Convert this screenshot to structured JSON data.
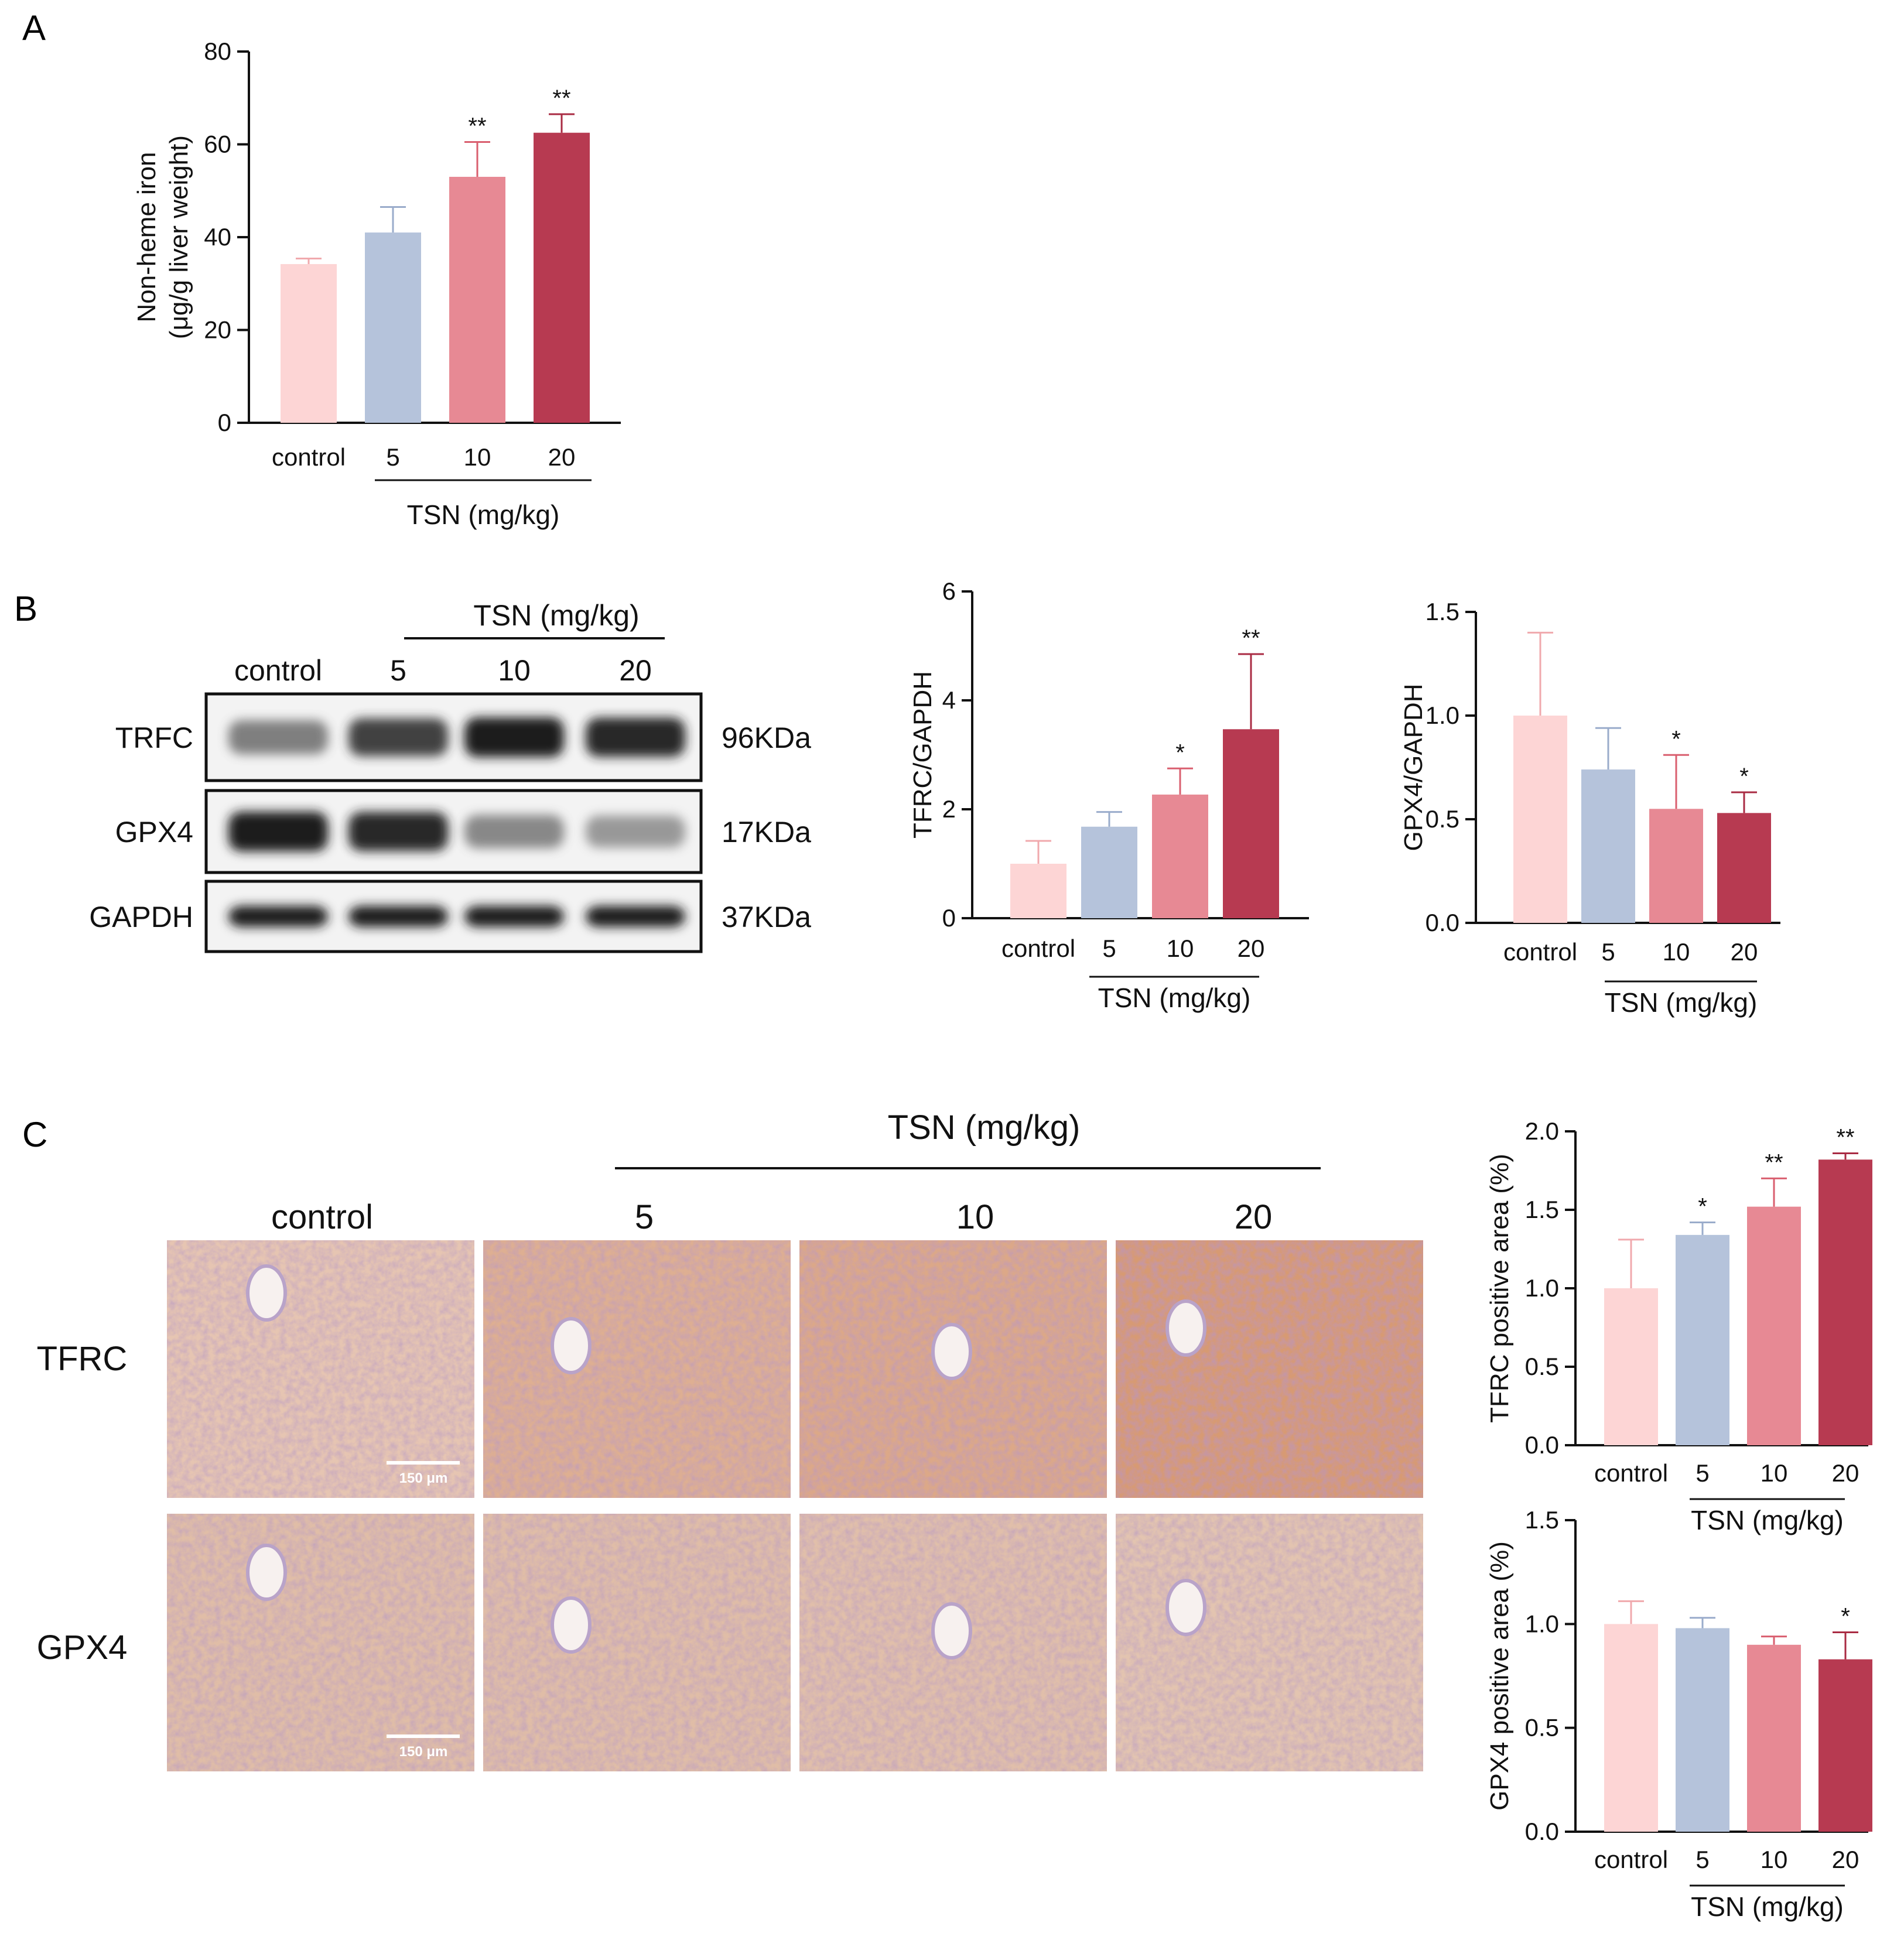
{
  "colors": {
    "control": "#fdd5d5",
    "tsn5": "#b5c3db",
    "tsn10": "#e78994",
    "tsn20": "#b73a51",
    "err_control": "#f0a9ad",
    "err_tsn5": "#9aaccb",
    "err_tsn10": "#d95f6f",
    "err_tsn20": "#a92b43",
    "ihc_tfrc": "#d9a384",
    "ihc_gpx4": "#d9b49f"
  },
  "panels": {
    "a": "A",
    "b": "B",
    "c": "C"
  },
  "blot": {
    "group_label": "TSN  (mg/kg)",
    "lanes": [
      "control",
      "5",
      "10",
      "20"
    ],
    "rows": [
      {
        "protein": "TRFC",
        "size": "96KDa",
        "intensity": [
          0.55,
          0.85,
          1.0,
          0.95
        ]
      },
      {
        "protein": "GPX4",
        "size": "17KDa",
        "intensity": [
          1.0,
          0.95,
          0.5,
          0.4
        ]
      },
      {
        "protein": "GAPDH",
        "size": "37KDa",
        "intensity": [
          1.0,
          1.0,
          1.0,
          1.0
        ]
      }
    ]
  },
  "ihc": {
    "group_label": "TSN (mg/kg)",
    "columns": [
      "control",
      "5",
      "10",
      "20"
    ],
    "rows": [
      "TFRC",
      "GPX4"
    ],
    "scale_bar": "150 μm",
    "tfrc_staining": [
      0.35,
      0.65,
      0.75,
      0.95
    ],
    "gpx4_staining": [
      0.55,
      0.55,
      0.5,
      0.4
    ]
  },
  "chart_data": [
    {
      "id": "A",
      "type": "bar",
      "categories": [
        "control",
        "5",
        "10",
        "20"
      ],
      "values": [
        34.2,
        41.0,
        53.0,
        62.5
      ],
      "errors": [
        1.2,
        5.5,
        7.5,
        4.0
      ],
      "significance": [
        "",
        "",
        "**",
        "**"
      ],
      "ylabel_lines": [
        "Non-heme iron",
        "(μg/g liver weight)"
      ],
      "xgroup_label": "TSN (mg/kg)",
      "ylim": [
        0,
        80
      ],
      "yticks": [
        "0",
        "20",
        "40",
        "60",
        "80"
      ]
    },
    {
      "id": "B-TFRC",
      "type": "bar",
      "categories": [
        "control",
        "5",
        "10",
        "20"
      ],
      "values": [
        1.0,
        1.68,
        2.27,
        3.47
      ],
      "errors": [
        0.42,
        0.27,
        0.48,
        1.38
      ],
      "significance": [
        "",
        "",
        "*",
        "**"
      ],
      "ylabel_lines": [
        "TFRC/GAPDH"
      ],
      "xgroup_label": "TSN (mg/kg)",
      "ylim": [
        0,
        6
      ],
      "yticks": [
        "0",
        "2",
        "4",
        "6"
      ]
    },
    {
      "id": "B-GPX4",
      "type": "bar",
      "categories": [
        "control",
        "5",
        "10",
        "20"
      ],
      "values": [
        1.0,
        0.74,
        0.55,
        0.53
      ],
      "errors": [
        0.4,
        0.2,
        0.26,
        0.1
      ],
      "significance": [
        "",
        "",
        "*",
        "*"
      ],
      "ylabel_lines": [
        "GPX4/GAPDH"
      ],
      "xgroup_label": "TSN (mg/kg)",
      "ylim": [
        0,
        1.5
      ],
      "yticks": [
        "0.0",
        "0.5",
        "1.0",
        "1.5"
      ]
    },
    {
      "id": "C-TFRC",
      "type": "bar",
      "categories": [
        "control",
        "5",
        "10",
        "20"
      ],
      "values": [
        1.0,
        1.34,
        1.52,
        1.82
      ],
      "errors": [
        0.31,
        0.08,
        0.18,
        0.04
      ],
      "significance": [
        "",
        "*",
        "**",
        "**"
      ],
      "ylabel_lines": [
        "TFRC positive  area (%)"
      ],
      "xgroup_label": "TSN (mg/kg)",
      "ylim": [
        0,
        2.0
      ],
      "yticks": [
        "0.0",
        "0.5",
        "1.0",
        "1.5",
        "2.0"
      ]
    },
    {
      "id": "C-GPX4",
      "type": "bar",
      "categories": [
        "control",
        "5",
        "10",
        "20"
      ],
      "values": [
        1.0,
        0.98,
        0.9,
        0.83
      ],
      "errors": [
        0.11,
        0.05,
        0.04,
        0.13
      ],
      "significance": [
        "",
        "",
        "",
        "*"
      ],
      "ylabel_lines": [
        "GPX4 positive  area (%)"
      ],
      "xgroup_label": "TSN (mg/kg)",
      "ylim": [
        0,
        1.5
      ],
      "yticks": [
        "0.0",
        "0.5",
        "1.0",
        "1.5"
      ]
    }
  ]
}
